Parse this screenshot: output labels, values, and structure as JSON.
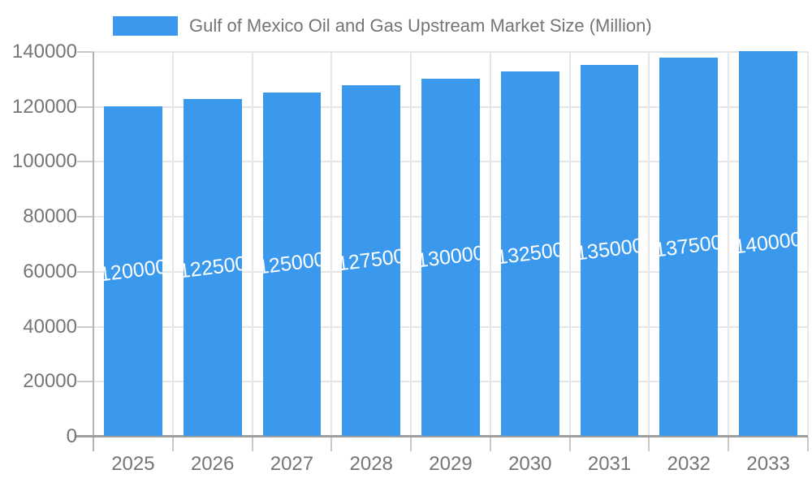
{
  "legend": {
    "label": "Gulf of Mexico Oil and Gas Upstream Market Size (Million)"
  },
  "colors": {
    "bar": "#3a99ec",
    "axis_text": "#757575",
    "bar_label_text": "#ffffff",
    "gridline": "#e6e6e6",
    "axis_line": "#9e9e9e",
    "tick": "#c9c9c9",
    "background": "#ffffff"
  },
  "chart_data": {
    "type": "bar",
    "title": "Gulf of Mexico Oil and Gas Upstream Market Size (Million)",
    "categories": [
      "2025",
      "2026",
      "2027",
      "2028",
      "2029",
      "2030",
      "2031",
      "2032",
      "2033"
    ],
    "values": [
      120000,
      122500,
      125000,
      127500,
      130000,
      132500,
      135000,
      137500,
      140000
    ],
    "bar_labels": [
      "120000",
      "122500",
      "125000",
      "127500",
      "130000",
      "132500",
      "135000",
      "137500",
      "140000"
    ],
    "xlabel": "",
    "ylabel": "",
    "yticks": [
      0,
      20000,
      40000,
      60000,
      80000,
      100000,
      120000,
      140000
    ],
    "ytick_labels": [
      "0",
      "20000",
      "40000",
      "60000",
      "80000",
      "100000",
      "120000",
      "140000"
    ],
    "ylim": [
      0,
      140000
    ],
    "grid": true,
    "legend_position": "top"
  }
}
